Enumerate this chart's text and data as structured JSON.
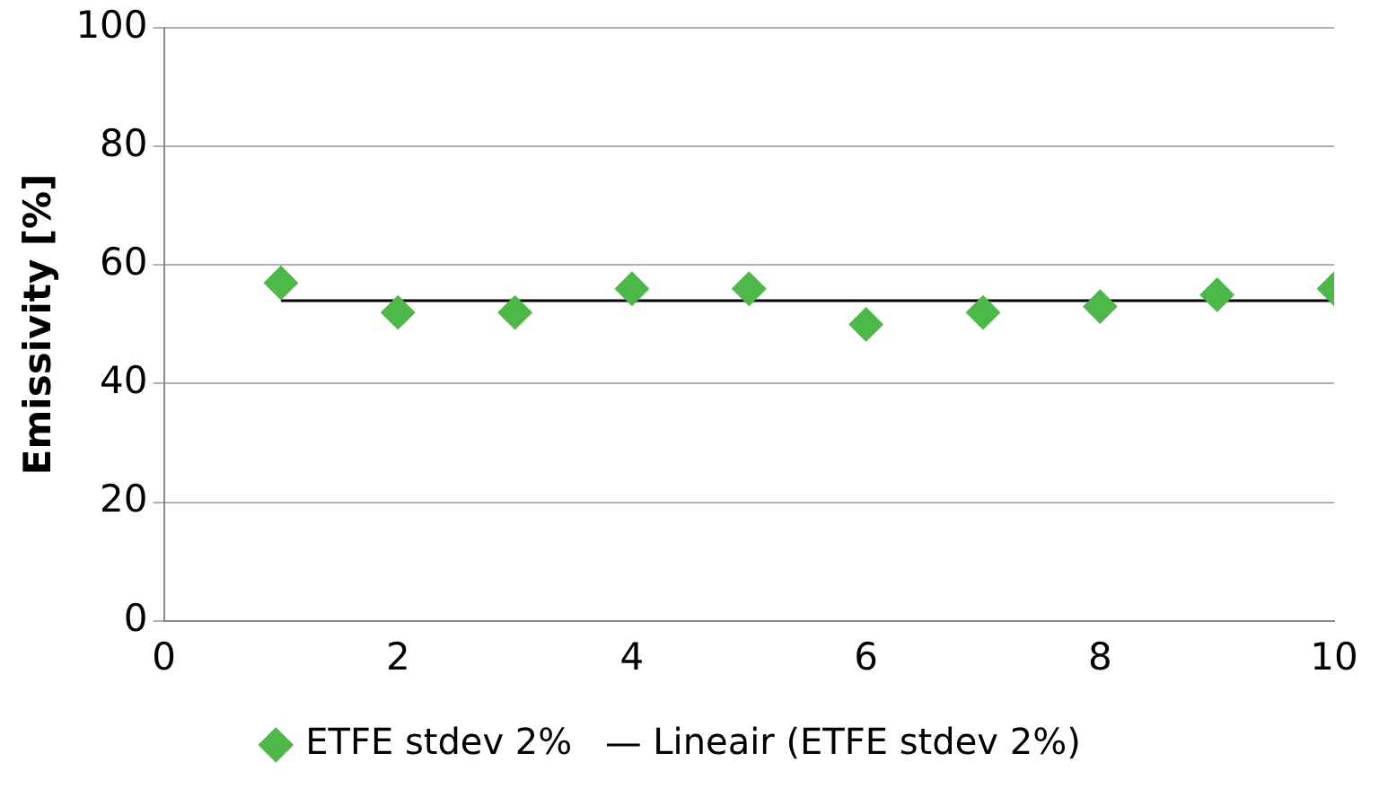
{
  "chart_data": {
    "type": "scatter",
    "ylabel": "Emissivity [%]",
    "xlim": [
      0,
      10
    ],
    "xticks": [
      0,
      2,
      4,
      6,
      8,
      10
    ],
    "ylim": [
      0,
      100
    ],
    "yticks": [
      0,
      20,
      40,
      60,
      80,
      100
    ],
    "grid": "y",
    "legend": "bottom",
    "marker": "diamond",
    "series": [
      {
        "name": "ETFE stdev 2%",
        "color": "#4cb848",
        "x": [
          1,
          2,
          3,
          4,
          5,
          6,
          7,
          8,
          9,
          10
        ],
        "values": [
          57,
          52,
          52,
          56,
          56,
          50,
          52,
          53,
          55,
          56
        ]
      },
      {
        "name": "Lineair (ETFE stdev 2%)",
        "type": "line",
        "marker": "none",
        "line_style": "solid",
        "color": "#000000",
        "x": [
          1,
          10
        ],
        "values": [
          54,
          54
        ]
      }
    ]
  }
}
